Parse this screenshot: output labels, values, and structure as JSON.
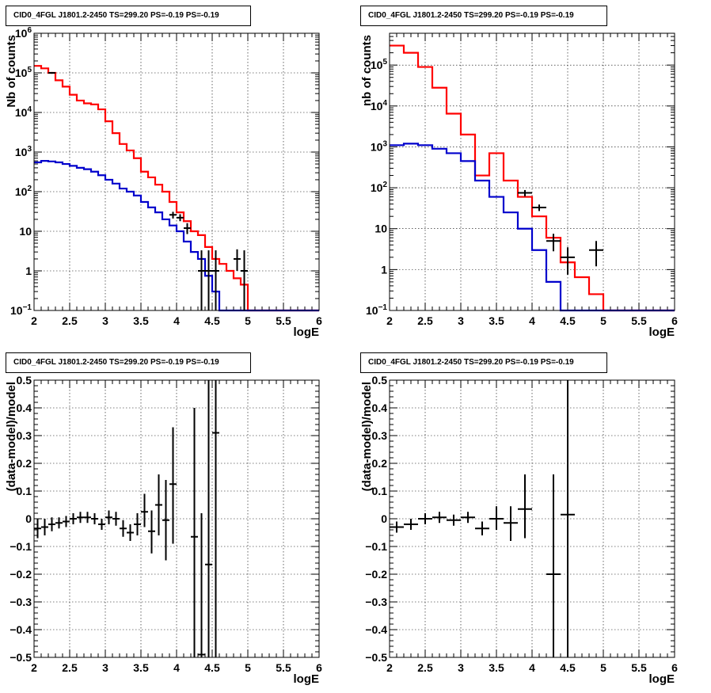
{
  "panels": [
    {
      "title": "CID0_4FGL J1801.2-2450 TS=299.20 PS=-0.19 PS=-0.19",
      "chart_data": {
        "type": "line",
        "xlabel": "logE",
        "ylabel": "Nb of counts",
        "xlim": [
          2,
          6
        ],
        "ylim": [
          0.1,
          1000000
        ],
        "yscale": "log",
        "grid": true,
        "x_ticks": [
          "2",
          "2.5",
          "3",
          "3.5",
          "4",
          "4.5",
          "5",
          "5.5",
          "6"
        ],
        "y_ticks": [
          {
            "v": 0.1,
            "base": "10",
            "exp": "−1"
          },
          {
            "v": 1,
            "label": "1"
          },
          {
            "v": 10,
            "label": "10"
          },
          {
            "v": 100,
            "base": "10",
            "exp": "2"
          },
          {
            "v": 1000,
            "base": "10",
            "exp": "3"
          },
          {
            "v": 10000,
            "base": "10",
            "exp": "4"
          },
          {
            "v": 100000,
            "base": "10",
            "exp": "5"
          },
          {
            "v": 1000000,
            "base": "10",
            "exp": "6"
          }
        ],
        "series": [
          {
            "color": "#ff0000",
            "edges": [
              2.0,
              2.1,
              2.2,
              2.3,
              2.4,
              2.5,
              2.6,
              2.7,
              2.8,
              2.9,
              3.0,
              3.1,
              3.2,
              3.3,
              3.4,
              3.5,
              3.6,
              3.7,
              3.8,
              3.9,
              4.0,
              4.1,
              4.2,
              4.3,
              4.4,
              4.5,
              4.6,
              4.7,
              4.8,
              4.9,
              5.0,
              5.1,
              5.2,
              5.3,
              5.4,
              5.5,
              5.6,
              5.7,
              5.8,
              5.9,
              6.0
            ],
            "values": [
              150000,
              130000,
              100000,
              65000,
              45000,
              28000,
              20000,
              17000,
              16000,
              12000,
              6000,
              3000,
              1600,
              1100,
              700,
              320,
              230,
              150,
              100,
              55,
              30,
              18,
              10,
              8,
              4,
              2,
              1.5,
              1,
              0.65,
              0.45,
              0.1,
              0.1,
              0.1,
              0.1,
              0.1,
              0.1,
              0.1,
              0.1,
              0.1,
              0.1
            ]
          },
          {
            "color": "#0000cc",
            "edges": [
              2.0,
              2.1,
              2.2,
              2.3,
              2.4,
              2.5,
              2.6,
              2.7,
              2.8,
              2.9,
              3.0,
              3.1,
              3.2,
              3.3,
              3.4,
              3.5,
              3.6,
              3.7,
              3.8,
              3.9,
              4.0,
              4.1,
              4.2,
              4.3,
              4.4,
              4.5,
              4.6,
              4.7,
              4.8,
              4.9,
              5.0,
              5.1,
              5.2,
              5.3,
              5.4,
              5.5,
              5.6,
              5.7,
              5.8,
              5.9,
              6.0
            ],
            "values": [
              550,
              600,
              580,
              550,
              500,
              450,
              400,
              370,
              320,
              260,
              200,
              160,
              120,
              100,
              80,
              55,
              40,
              30,
              20,
              14,
              10,
              5.5,
              3,
              2,
              0.75,
              0.3,
              0.1,
              0.1,
              0.1,
              0.1,
              0.1,
              0.1,
              0.1,
              0.1,
              0.1,
              0.1,
              0.1,
              0.1,
              0.1,
              0.1
            ]
          }
        ],
        "points": [
          {
            "x": 2.25,
            "y": 100000,
            "xerr": 0.05,
            "ylo": 95000,
            "yhi": 105000
          },
          {
            "x": 3.95,
            "y": 26,
            "xerr": 0.05,
            "ylo": 21,
            "yhi": 31
          },
          {
            "x": 4.05,
            "y": 22,
            "xerr": 0.05,
            "ylo": 18,
            "yhi": 27
          },
          {
            "x": 4.15,
            "y": 12,
            "xerr": 0.05,
            "ylo": 8.5,
            "yhi": 16
          },
          {
            "x": 4.35,
            "y": 1,
            "xerr": 0.05,
            "ylo": 0.1,
            "yhi": 3.3
          },
          {
            "x": 4.45,
            "y": 1,
            "xerr": 0.05,
            "ylo": 0.1,
            "yhi": 3.3
          },
          {
            "x": 4.55,
            "y": 1,
            "xerr": 0.05,
            "ylo": 0.1,
            "yhi": 3.3
          },
          {
            "x": 4.85,
            "y": 2,
            "xerr": 0.05,
            "ylo": 1,
            "yhi": 3.5
          },
          {
            "x": 4.95,
            "y": 1,
            "xerr": 0.05,
            "ylo": 0.1,
            "yhi": 3.3
          }
        ]
      }
    },
    {
      "title": "CID0_4FGL J1801.2-2450 TS=299.20 PS=-0.19 PS=-0.19",
      "chart_data": {
        "type": "line",
        "xlabel": "logE",
        "ylabel": "nb of counts",
        "xlim": [
          2,
          6
        ],
        "ylim": [
          0.1,
          600000
        ],
        "yscale": "log",
        "grid": true,
        "x_ticks": [
          "2",
          "2.5",
          "3",
          "3.5",
          "4",
          "4.5",
          "5",
          "5.5",
          "6"
        ],
        "y_ticks": [
          {
            "v": 0.1,
            "base": "10",
            "exp": "−1"
          },
          {
            "v": 1,
            "label": "1"
          },
          {
            "v": 10,
            "label": "10"
          },
          {
            "v": 100,
            "base": "10",
            "exp": "2"
          },
          {
            "v": 1000,
            "base": "10",
            "exp": "3"
          },
          {
            "v": 10000,
            "base": "10",
            "exp": "4"
          },
          {
            "v": 100000,
            "base": "10",
            "exp": "5"
          }
        ],
        "series": [
          {
            "color": "#ff0000",
            "edges": [
              2.0,
              2.2,
              2.4,
              2.6,
              2.8,
              3.0,
              3.2,
              3.4,
              3.6,
              3.8,
              4.0,
              4.2,
              4.4,
              4.6,
              4.8,
              5.0,
              5.2,
              5.4,
              5.6,
              5.8,
              6.0
            ],
            "values": [
              300000,
              200000,
              90000,
              28000,
              6500,
              2000,
              200,
              700,
              150,
              60,
              20,
              6,
              1.5,
              0.65,
              0.25,
              0.1,
              0.1,
              0.1,
              0.1,
              0.1
            ]
          },
          {
            "color": "#0000cc",
            "edges": [
              2.0,
              2.2,
              2.4,
              2.6,
              2.8,
              3.0,
              3.2,
              3.4,
              3.6,
              3.8,
              4.0,
              4.2,
              4.4,
              4.6,
              4.8,
              5.0,
              5.2,
              5.4,
              5.6,
              5.8,
              6.0
            ],
            "values": [
              1100,
              1200,
              1100,
              900,
              700,
              450,
              150,
              60,
              25,
              10,
              3,
              0.5,
              0.1,
              0.1,
              0.1,
              0.1,
              0.1,
              0.1,
              0.1,
              0.1
            ]
          }
        ],
        "points": [
          {
            "x": 3.9,
            "y": 75,
            "xerr": 0.1,
            "ylo": 62,
            "yhi": 88
          },
          {
            "x": 4.1,
            "y": 33,
            "xerr": 0.1,
            "ylo": 27,
            "yhi": 39
          },
          {
            "x": 4.3,
            "y": 5,
            "xerr": 0.1,
            "ylo": 2.8,
            "yhi": 7.5
          },
          {
            "x": 4.5,
            "y": 2,
            "xerr": 0.1,
            "ylo": 0.75,
            "yhi": 3.5
          },
          {
            "x": 4.9,
            "y": 3,
            "xerr": 0.1,
            "ylo": 1.2,
            "yhi": 5
          }
        ]
      }
    },
    {
      "title": "CID0_4FGL J1801.2-2450 TS=299.20 PS=-0.19 PS=-0.19",
      "chart_data": {
        "type": "scatter",
        "xlabel": "logE",
        "ylabel": "(data-model)/model",
        "xlim": [
          2,
          6
        ],
        "ylim": [
          -0.5,
          0.5
        ],
        "yscale": "linear",
        "grid": true,
        "x_ticks": [
          "2",
          "2.5",
          "3",
          "3.5",
          "4",
          "4.5",
          "5",
          "5.5",
          "6"
        ],
        "y_ticks": [
          {
            "v": -0.5,
            "label": "−0.5"
          },
          {
            "v": -0.4,
            "label": "−0.4"
          },
          {
            "v": -0.3,
            "label": "−0.3"
          },
          {
            "v": -0.2,
            "label": "−0.2"
          },
          {
            "v": -0.1,
            "label": "−0.1"
          },
          {
            "v": 0,
            "label": "0"
          },
          {
            "v": 0.1,
            "label": "0.1"
          },
          {
            "v": 0.2,
            "label": "0.2"
          },
          {
            "v": 0.3,
            "label": "0.3"
          },
          {
            "v": 0.4,
            "label": "0.4"
          },
          {
            "v": 0.5,
            "label": "0.5"
          }
        ],
        "points": [
          {
            "x": 2.05,
            "y": -0.035,
            "xerr": 0.05,
            "ylo": -0.07,
            "yhi": 0.0
          },
          {
            "x": 2.15,
            "y": -0.03,
            "xerr": 0.05,
            "ylo": -0.06,
            "yhi": 0.0
          },
          {
            "x": 2.25,
            "y": -0.02,
            "xerr": 0.05,
            "ylo": -0.045,
            "yhi": 0.005
          },
          {
            "x": 2.35,
            "y": -0.015,
            "xerr": 0.05,
            "ylo": -0.035,
            "yhi": 0.005
          },
          {
            "x": 2.45,
            "y": -0.01,
            "xerr": 0.05,
            "ylo": -0.03,
            "yhi": 0.01
          },
          {
            "x": 2.55,
            "y": 0.0,
            "xerr": 0.05,
            "ylo": -0.02,
            "yhi": 0.02
          },
          {
            "x": 2.65,
            "y": 0.005,
            "xerr": 0.05,
            "ylo": -0.015,
            "yhi": 0.025
          },
          {
            "x": 2.75,
            "y": 0.005,
            "xerr": 0.05,
            "ylo": -0.015,
            "yhi": 0.025
          },
          {
            "x": 2.85,
            "y": 0.0,
            "xerr": 0.05,
            "ylo": -0.02,
            "yhi": 0.02
          },
          {
            "x": 2.95,
            "y": -0.02,
            "xerr": 0.05,
            "ylo": -0.04,
            "yhi": 0.0
          },
          {
            "x": 3.05,
            "y": 0.005,
            "xerr": 0.05,
            "ylo": -0.02,
            "yhi": 0.03
          },
          {
            "x": 3.15,
            "y": 0.0,
            "xerr": 0.05,
            "ylo": -0.025,
            "yhi": 0.025
          },
          {
            "x": 3.25,
            "y": -0.035,
            "xerr": 0.05,
            "ylo": -0.065,
            "yhi": -0.005
          },
          {
            "x": 3.35,
            "y": -0.05,
            "xerr": 0.05,
            "ylo": -0.08,
            "yhi": -0.02
          },
          {
            "x": 3.45,
            "y": -0.02,
            "xerr": 0.05,
            "ylo": -0.06,
            "yhi": 0.02
          },
          {
            "x": 3.55,
            "y": 0.025,
            "xerr": 0.05,
            "ylo": -0.03,
            "yhi": 0.09
          },
          {
            "x": 3.65,
            "y": -0.045,
            "xerr": 0.05,
            "ylo": -0.125,
            "yhi": 0.03
          },
          {
            "x": 3.75,
            "y": 0.05,
            "xerr": 0.05,
            "ylo": -0.06,
            "yhi": 0.16
          },
          {
            "x": 3.85,
            "y": -0.005,
            "xerr": 0.05,
            "ylo": -0.15,
            "yhi": 0.14
          },
          {
            "x": 3.95,
            "y": 0.125,
            "xerr": 0.05,
            "ylo": -0.09,
            "yhi": 0.33
          },
          {
            "x": 4.25,
            "y": -0.065,
            "xerr": 0.05,
            "ylo": -0.5,
            "yhi": 0.4
          },
          {
            "x": 4.35,
            "y": -0.49,
            "xerr": 0.05,
            "ylo": -0.5,
            "yhi": 0.02
          },
          {
            "x": 4.45,
            "y": -0.165,
            "xerr": 0.05,
            "ylo": -0.5,
            "yhi": 0.5
          },
          {
            "x": 4.55,
            "y": 0.31,
            "xerr": 0.05,
            "ylo": -0.5,
            "yhi": 0.5
          }
        ]
      }
    },
    {
      "title": "CID0_4FGL J1801.2-2450 TS=299.20 PS=-0.19 PS=-0.19",
      "chart_data": {
        "type": "scatter",
        "xlabel": "logE",
        "ylabel": "(data-model)/model",
        "xlim": [
          2,
          6
        ],
        "ylim": [
          -0.5,
          0.5
        ],
        "yscale": "linear",
        "grid": true,
        "x_ticks": [
          "2",
          "2.5",
          "3",
          "3.5",
          "4",
          "4.5",
          "5",
          "5.5",
          "6"
        ],
        "y_ticks": [
          {
            "v": -0.5,
            "label": "−0.5"
          },
          {
            "v": -0.4,
            "label": "−0.4"
          },
          {
            "v": -0.3,
            "label": "−0.3"
          },
          {
            "v": -0.2,
            "label": "−0.2"
          },
          {
            "v": -0.1,
            "label": "−0.1"
          },
          {
            "v": 0,
            "label": "0"
          },
          {
            "v": 0.1,
            "label": "0.1"
          },
          {
            "v": 0.2,
            "label": "0.2"
          },
          {
            "v": 0.3,
            "label": "0.3"
          },
          {
            "v": 0.4,
            "label": "0.4"
          },
          {
            "v": 0.5,
            "label": "0.5"
          }
        ],
        "points": [
          {
            "x": 2.1,
            "y": -0.03,
            "xerr": 0.1,
            "ylo": -0.05,
            "yhi": -0.01
          },
          {
            "x": 2.3,
            "y": -0.02,
            "xerr": 0.1,
            "ylo": -0.04,
            "yhi": 0.0
          },
          {
            "x": 2.5,
            "y": 0.0,
            "xerr": 0.1,
            "ylo": -0.02,
            "yhi": 0.02
          },
          {
            "x": 2.7,
            "y": 0.005,
            "xerr": 0.1,
            "ylo": -0.015,
            "yhi": 0.025
          },
          {
            "x": 2.9,
            "y": -0.005,
            "xerr": 0.1,
            "ylo": -0.025,
            "yhi": 0.015
          },
          {
            "x": 3.1,
            "y": 0.005,
            "xerr": 0.1,
            "ylo": -0.015,
            "yhi": 0.025
          },
          {
            "x": 3.3,
            "y": -0.035,
            "xerr": 0.1,
            "ylo": -0.06,
            "yhi": -0.01
          },
          {
            "x": 3.5,
            "y": 0.0,
            "xerr": 0.1,
            "ylo": -0.04,
            "yhi": 0.045
          },
          {
            "x": 3.7,
            "y": -0.015,
            "xerr": 0.1,
            "ylo": -0.08,
            "yhi": 0.045
          },
          {
            "x": 3.9,
            "y": 0.035,
            "xerr": 0.1,
            "ylo": -0.07,
            "yhi": 0.16
          },
          {
            "x": 4.3,
            "y": -0.2,
            "xerr": 0.1,
            "ylo": -0.5,
            "yhi": 0.16
          },
          {
            "x": 4.5,
            "y": 0.015,
            "xerr": 0.1,
            "ylo": -0.5,
            "yhi": 0.5
          }
        ]
      }
    }
  ]
}
